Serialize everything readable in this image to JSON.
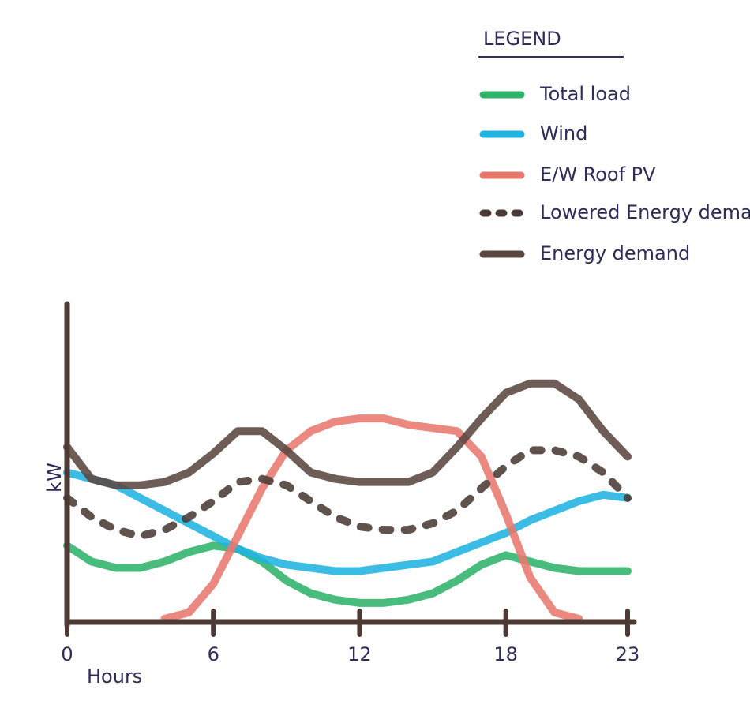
{
  "chart_data": {
    "type": "line",
    "legend_title": "LEGEND",
    "x_label": "Hours",
    "y_label": "kW",
    "x": [
      0,
      1,
      2,
      3,
      4,
      5,
      6,
      7,
      8,
      9,
      10,
      11,
      12,
      13,
      14,
      15,
      16,
      17,
      18,
      19,
      20,
      21,
      22,
      23
    ],
    "xlim": [
      0,
      23
    ],
    "xticks": [
      0,
      6,
      12,
      18,
      23
    ],
    "ylim": [
      0,
      10
    ],
    "series": [
      {
        "name": "Total load",
        "color": "#2fb36a",
        "style": "solid",
        "values": [
          2.4,
          1.9,
          1.7,
          1.7,
          1.9,
          2.2,
          2.4,
          2.3,
          1.9,
          1.3,
          0.9,
          0.7,
          0.6,
          0.6,
          0.7,
          0.9,
          1.3,
          1.8,
          2.1,
          1.9,
          1.7,
          1.6,
          1.6,
          1.6
        ]
      },
      {
        "name": "Wind",
        "color": "#1fb3e0",
        "style": "solid",
        "values": [
          4.7,
          4.5,
          4.3,
          3.9,
          3.5,
          3.1,
          2.7,
          2.3,
          2.0,
          1.8,
          1.7,
          1.6,
          1.6,
          1.7,
          1.8,
          1.9,
          2.2,
          2.5,
          2.8,
          3.2,
          3.5,
          3.8,
          4.0,
          3.9
        ]
      },
      {
        "name": "E/W Roof PV",
        "color": "#e8776e",
        "style": "solid",
        "values": [
          null,
          null,
          null,
          null,
          0.1,
          0.3,
          1.2,
          2.7,
          4.2,
          5.4,
          6.0,
          6.3,
          6.4,
          6.4,
          6.2,
          6.1,
          6.0,
          5.2,
          3.4,
          1.4,
          0.3,
          0.1,
          null,
          null
        ]
      },
      {
        "name": "Lowered Energy demand",
        "color": "#4a3b36",
        "style": "dashed",
        "values": [
          3.9,
          3.3,
          2.9,
          2.7,
          2.9,
          3.3,
          3.8,
          4.4,
          4.5,
          4.3,
          3.8,
          3.3,
          3.0,
          2.9,
          2.9,
          3.1,
          3.5,
          4.2,
          4.9,
          5.4,
          5.4,
          5.2,
          4.7,
          3.9
        ]
      },
      {
        "name": "Energy demand",
        "color": "#5a4640",
        "style": "solid",
        "values": [
          5.5,
          4.5,
          4.3,
          4.3,
          4.4,
          4.7,
          5.3,
          6.0,
          6.0,
          5.4,
          4.7,
          4.5,
          4.4,
          4.4,
          4.4,
          4.7,
          5.5,
          6.4,
          7.2,
          7.5,
          7.5,
          7.0,
          6.0,
          5.2
        ]
      }
    ]
  }
}
